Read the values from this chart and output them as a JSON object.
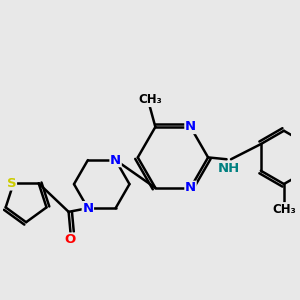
{
  "bg_color": "#e8e8e8",
  "bond_color": "#000000",
  "bond_width": 1.8,
  "atom_colors": {
    "C": "#000000",
    "N": "#0000ff",
    "O": "#ff0000",
    "S": "#cccc00",
    "NH": "#008080"
  },
  "font_size": 9.5
}
